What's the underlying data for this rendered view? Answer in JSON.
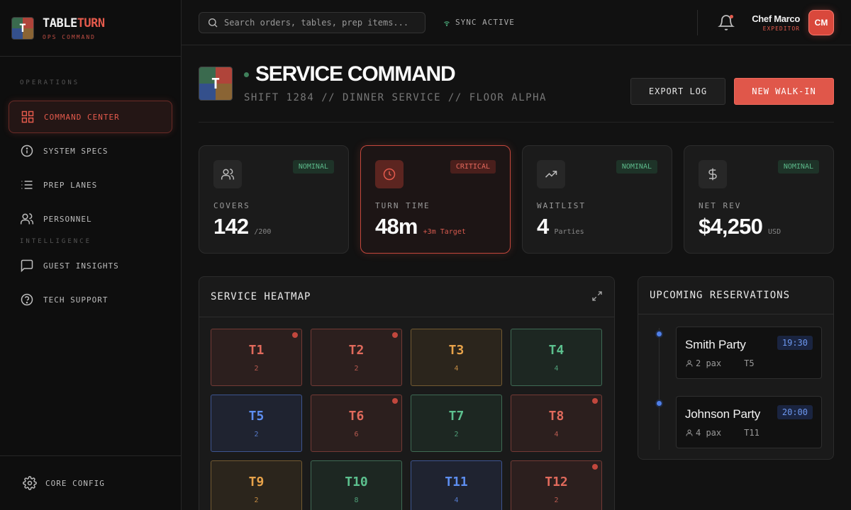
{
  "brand": {
    "name_main": "TABLE",
    "name_accent": "TURN",
    "subtitle": "OPS COMMAND",
    "logo_letter": "T"
  },
  "sidebar": {
    "sections": [
      "OPERATIONS",
      "INTELLIGENCE"
    ],
    "items": [
      {
        "label": "COMMAND CENTER",
        "icon": "grid-icon",
        "active": true
      },
      {
        "label": "SYSTEM SPECS",
        "icon": "info-icon"
      },
      {
        "label": "PREP LANES",
        "icon": "list-icon"
      },
      {
        "label": "PERSONNEL",
        "icon": "users-icon"
      },
      {
        "label": "GUEST INSIGHTS",
        "icon": "message-icon"
      },
      {
        "label": "TECH SUPPORT",
        "icon": "help-icon"
      }
    ],
    "footer": {
      "label": "CORE CONFIG",
      "icon": "gear-icon"
    }
  },
  "topbar": {
    "search_placeholder": "Search orders, tables, prep items...",
    "sync_label": "SYNC ACTIVE",
    "user_name": "Chef Marco",
    "user_role": "EXPEDITOR",
    "user_initials": "CM"
  },
  "header": {
    "title": "SERVICE COMMAND",
    "subtitle": "SHIFT 1284 // DINNER SERVICE // FLOOR ALPHA",
    "export_label": "EXPORT LOG",
    "walkin_label": "NEW WALK-IN"
  },
  "stats": [
    {
      "label": "COVERS",
      "value": "142",
      "unit": "/200",
      "badge": "NOMINAL",
      "status": "ok",
      "icon": "users-icon"
    },
    {
      "label": "TURN TIME",
      "value": "48m",
      "unit": "+3m Target",
      "badge": "CRITICAL",
      "status": "bad",
      "icon": "clock-icon"
    },
    {
      "label": "WAITLIST",
      "value": "4",
      "unit": "Parties",
      "badge": "NOMINAL",
      "status": "ok",
      "icon": "trending-up-icon"
    },
    {
      "label": "NET REV",
      "value": "$4,250",
      "unit": "USD",
      "badge": "NOMINAL",
      "status": "ok",
      "icon": "dollar-icon"
    }
  ],
  "heatmap": {
    "title": "SERVICE HEATMAP",
    "tables": [
      {
        "name": "T1",
        "guests": "2",
        "status": "red",
        "alert": true
      },
      {
        "name": "T2",
        "guests": "2",
        "status": "red",
        "alert": true
      },
      {
        "name": "T3",
        "guests": "4",
        "status": "amber",
        "alert": false
      },
      {
        "name": "T4",
        "guests": "4",
        "status": "green",
        "alert": false
      },
      {
        "name": "T5",
        "guests": "2",
        "status": "blue",
        "alert": false
      },
      {
        "name": "T6",
        "guests": "6",
        "status": "red",
        "alert": true
      },
      {
        "name": "T7",
        "guests": "2",
        "status": "green",
        "alert": false
      },
      {
        "name": "T8",
        "guests": "4",
        "status": "red",
        "alert": true
      },
      {
        "name": "T9",
        "guests": "2",
        "status": "amber",
        "alert": false
      },
      {
        "name": "T10",
        "guests": "8",
        "status": "green",
        "alert": false
      },
      {
        "name": "T11",
        "guests": "4",
        "status": "blue",
        "alert": false
      },
      {
        "name": "T12",
        "guests": "2",
        "status": "red",
        "alert": true
      }
    ]
  },
  "reservations": {
    "title": "UPCOMING RESERVATIONS",
    "items": [
      {
        "name": "Smith Party",
        "time": "19:30",
        "pax": "2 pax",
        "table": "T5"
      },
      {
        "name": "Johnson Party",
        "time": "20:00",
        "pax": "4 pax",
        "table": "T11"
      }
    ]
  },
  "colors": {
    "accent": "#e45a4c",
    "ok": "#5cb98a",
    "warn": "#e8a34a",
    "info": "#5d8ef0",
    "background": "#121212"
  }
}
